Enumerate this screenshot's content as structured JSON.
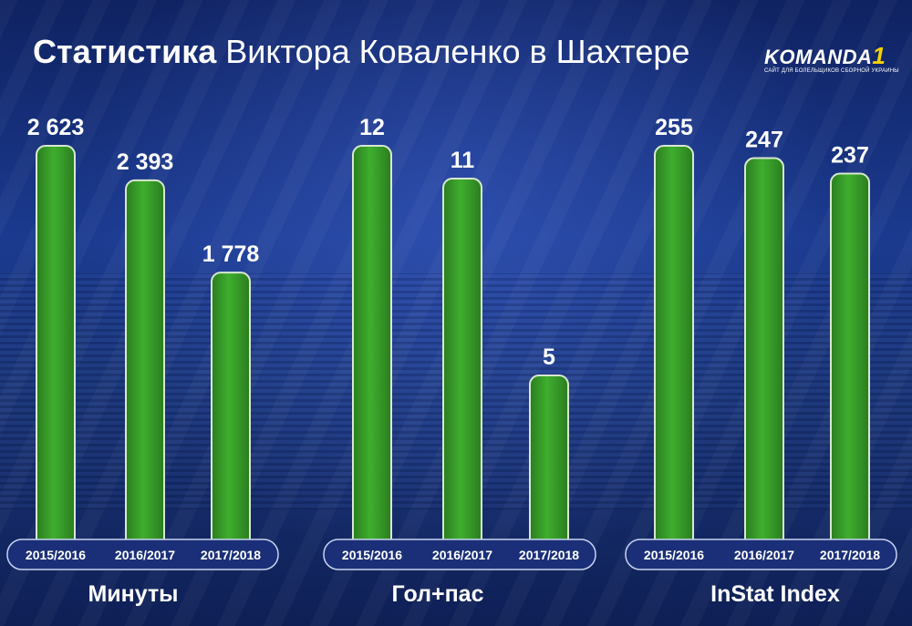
{
  "title": {
    "bold": "Статистика",
    "rest": "Виктора Коваленко в Шахтере"
  },
  "logo": {
    "name": "KOMANDA",
    "number": "1",
    "tagline": "САЙТ ДЛЯ БОЛЕЛЬЩИКОВ СБОРНОЙ УКРАИНЫ"
  },
  "colors": {
    "bar": "#3a9e2a",
    "bar_dark": "#2a7d1f",
    "background": "#1b3a8f",
    "pill": "#1a2f78",
    "text": "#ffffff"
  },
  "chart_data": [
    {
      "type": "bar",
      "title": "Минуты",
      "categories": [
        "2015/2016",
        "2016/2017",
        "2017/2018"
      ],
      "values": [
        2623,
        2393,
        1778
      ],
      "value_labels": [
        "2 623",
        "2 393",
        "1 778"
      ]
    },
    {
      "type": "bar",
      "title": "Гол+пас",
      "categories": [
        "2015/2016",
        "2016/2017",
        "2017/2018"
      ],
      "values": [
        12,
        11,
        5
      ],
      "value_labels": [
        "12",
        "11",
        "5"
      ]
    },
    {
      "type": "bar",
      "title": "InStat Index",
      "categories": [
        "2015/2016",
        "2016/2017",
        "2017/2018"
      ],
      "values": [
        255,
        247,
        237
      ],
      "value_labels": [
        "255",
        "247",
        "237"
      ]
    }
  ]
}
